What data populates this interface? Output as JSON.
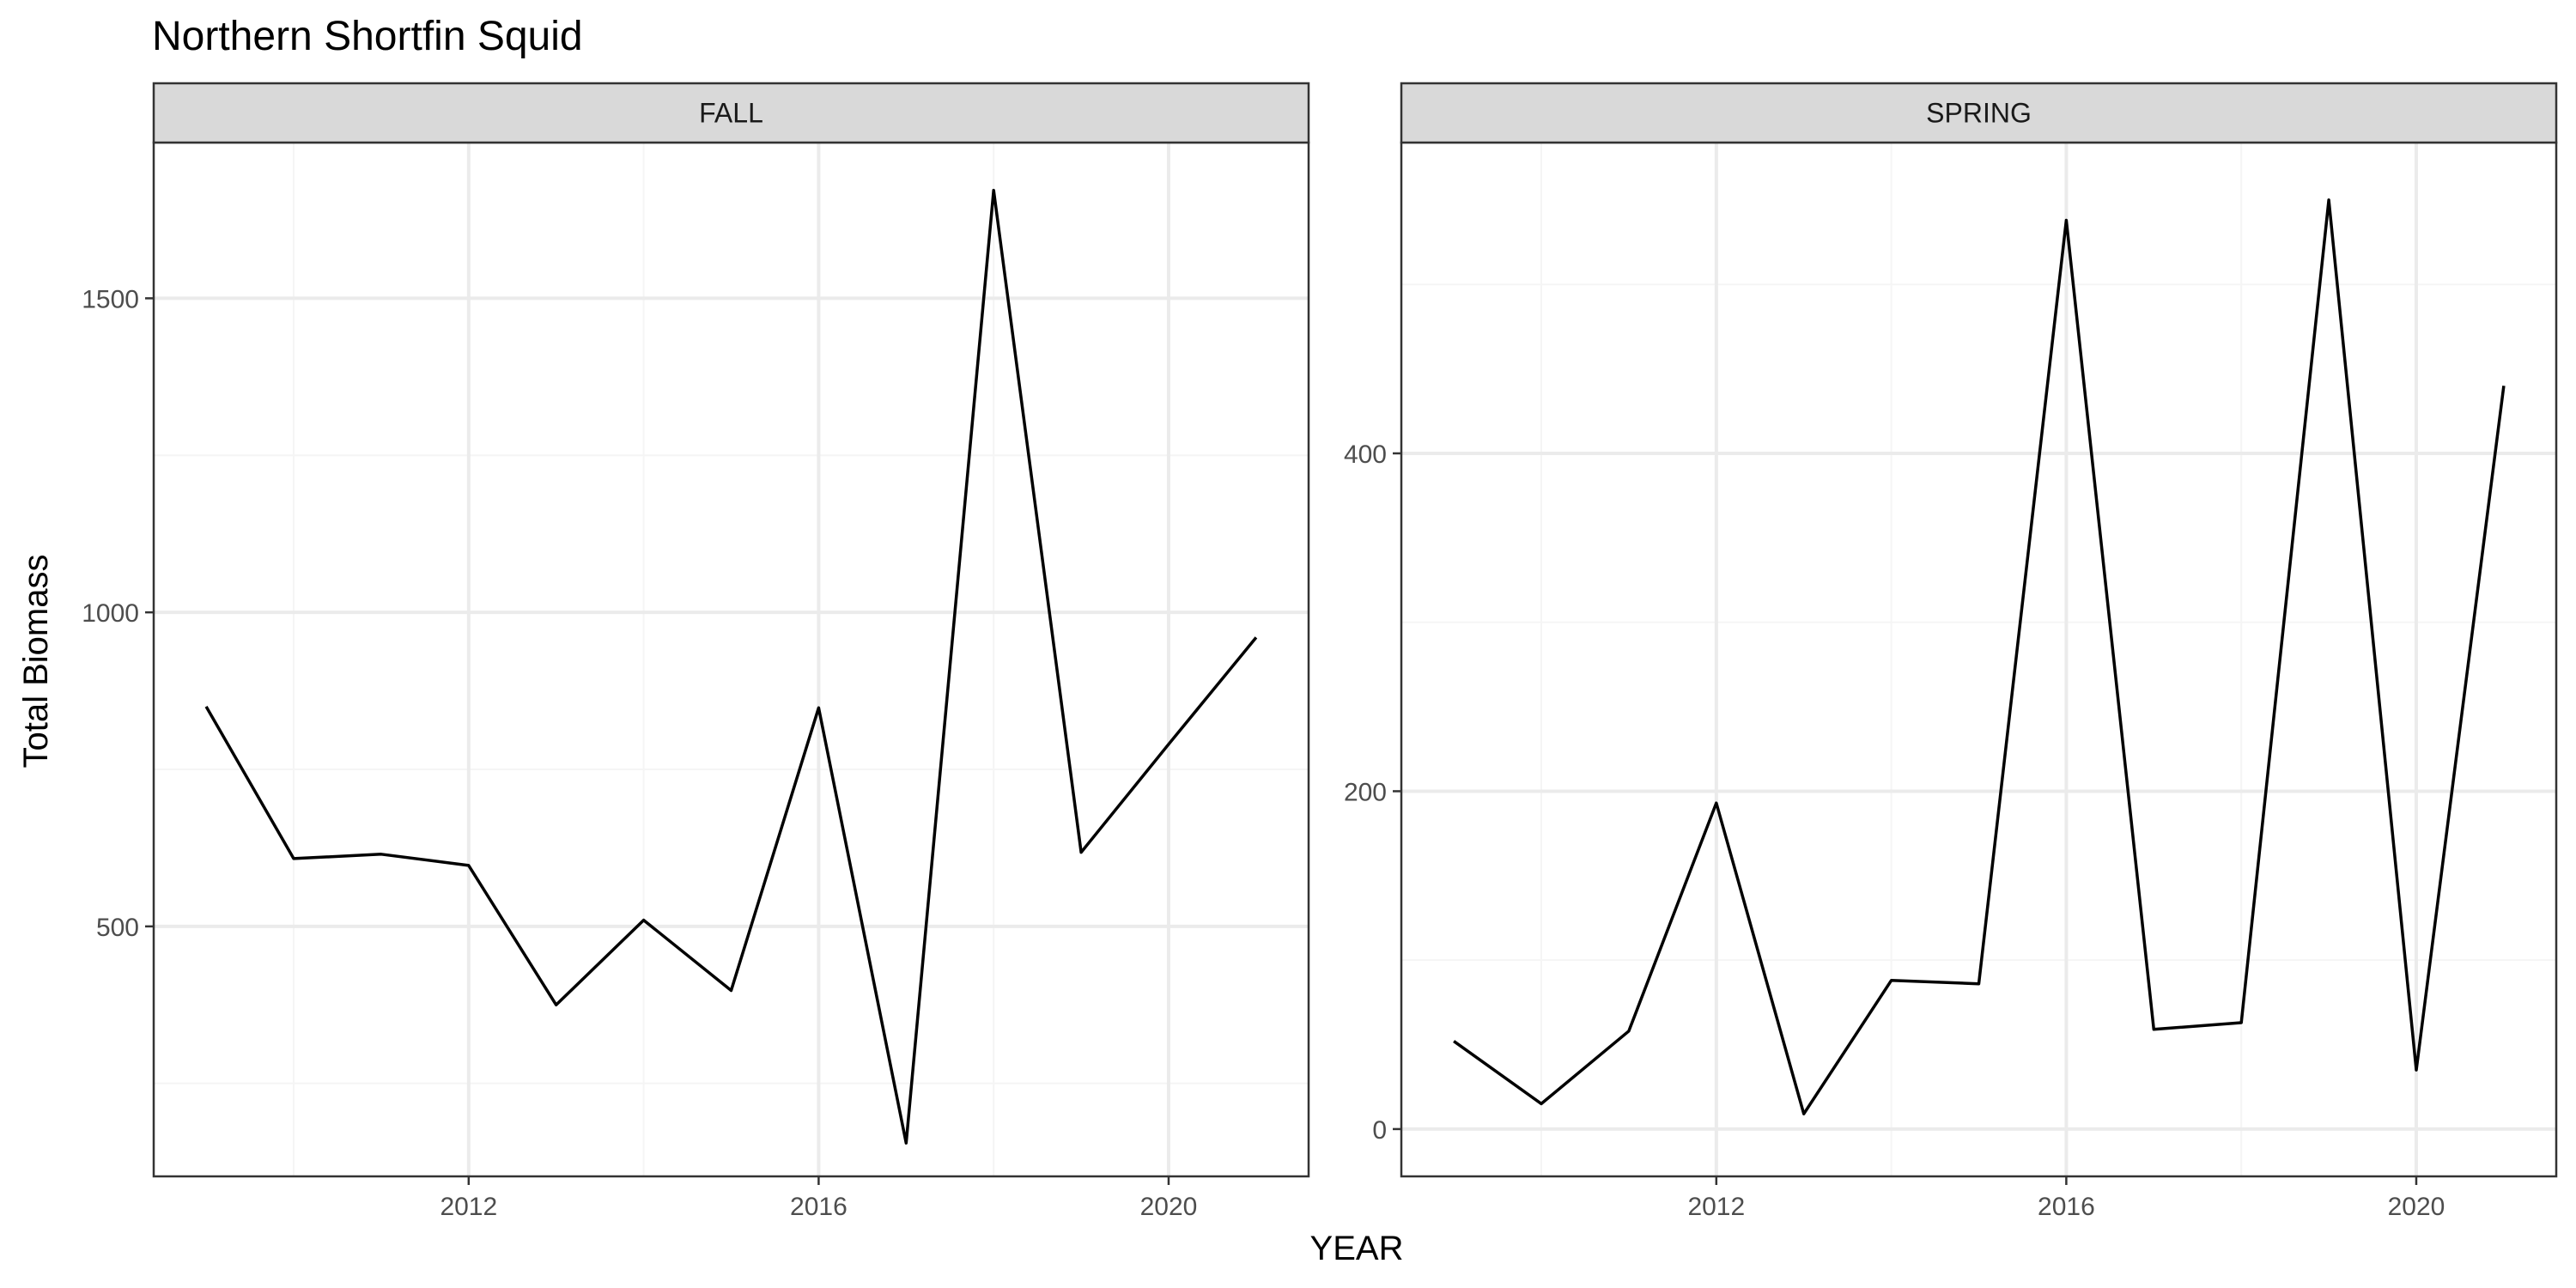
{
  "chart_data": {
    "type": "line",
    "title": "Northern Shortfin Squid",
    "xlabel": "YEAR",
    "ylabel": "Total Biomass",
    "grid": true,
    "colors": {
      "line": "#000000",
      "strip": "#d9d9d9",
      "grid_major": "#ebebeb",
      "grid_minor": "#f5f5f5",
      "panel_border": "#333333"
    },
    "panels": [
      {
        "facet": "FALL",
        "xlim": [
          2008.4,
          2021.6
        ],
        "ylim": [
          102,
          1748
        ],
        "x_ticks": [
          2012,
          2016,
          2020
        ],
        "y_ticks": [
          500,
          1000,
          1500
        ],
        "x_minor": [
          2010,
          2014,
          2018
        ],
        "y_minor": [
          250,
          750,
          1250
        ],
        "x": [
          2009,
          2010,
          2011,
          2012,
          2013,
          2014,
          2015,
          2016,
          2017,
          2018,
          2019,
          2020,
          2021
        ],
        "y": [
          850,
          608,
          615,
          597,
          375,
          510,
          398,
          848,
          155,
          1672,
          618,
          790,
          960
        ]
      },
      {
        "facet": "SPRING",
        "xlim": [
          2008.4,
          2021.6
        ],
        "ylim": [
          -28,
          584
        ],
        "x_ticks": [
          2012,
          2016,
          2020
        ],
        "y_ticks": [
          0,
          200,
          400
        ],
        "x_minor": [
          2010,
          2014,
          2018
        ],
        "y_minor": [
          100,
          300,
          500
        ],
        "x": [
          2009,
          2010,
          2011,
          2012,
          2013,
          2014,
          2015,
          2016,
          2017,
          2018,
          2019,
          2020,
          2021
        ],
        "y": [
          52,
          15,
          58,
          193,
          9,
          88,
          86,
          538,
          59,
          63,
          550,
          35,
          440
        ]
      }
    ]
  }
}
